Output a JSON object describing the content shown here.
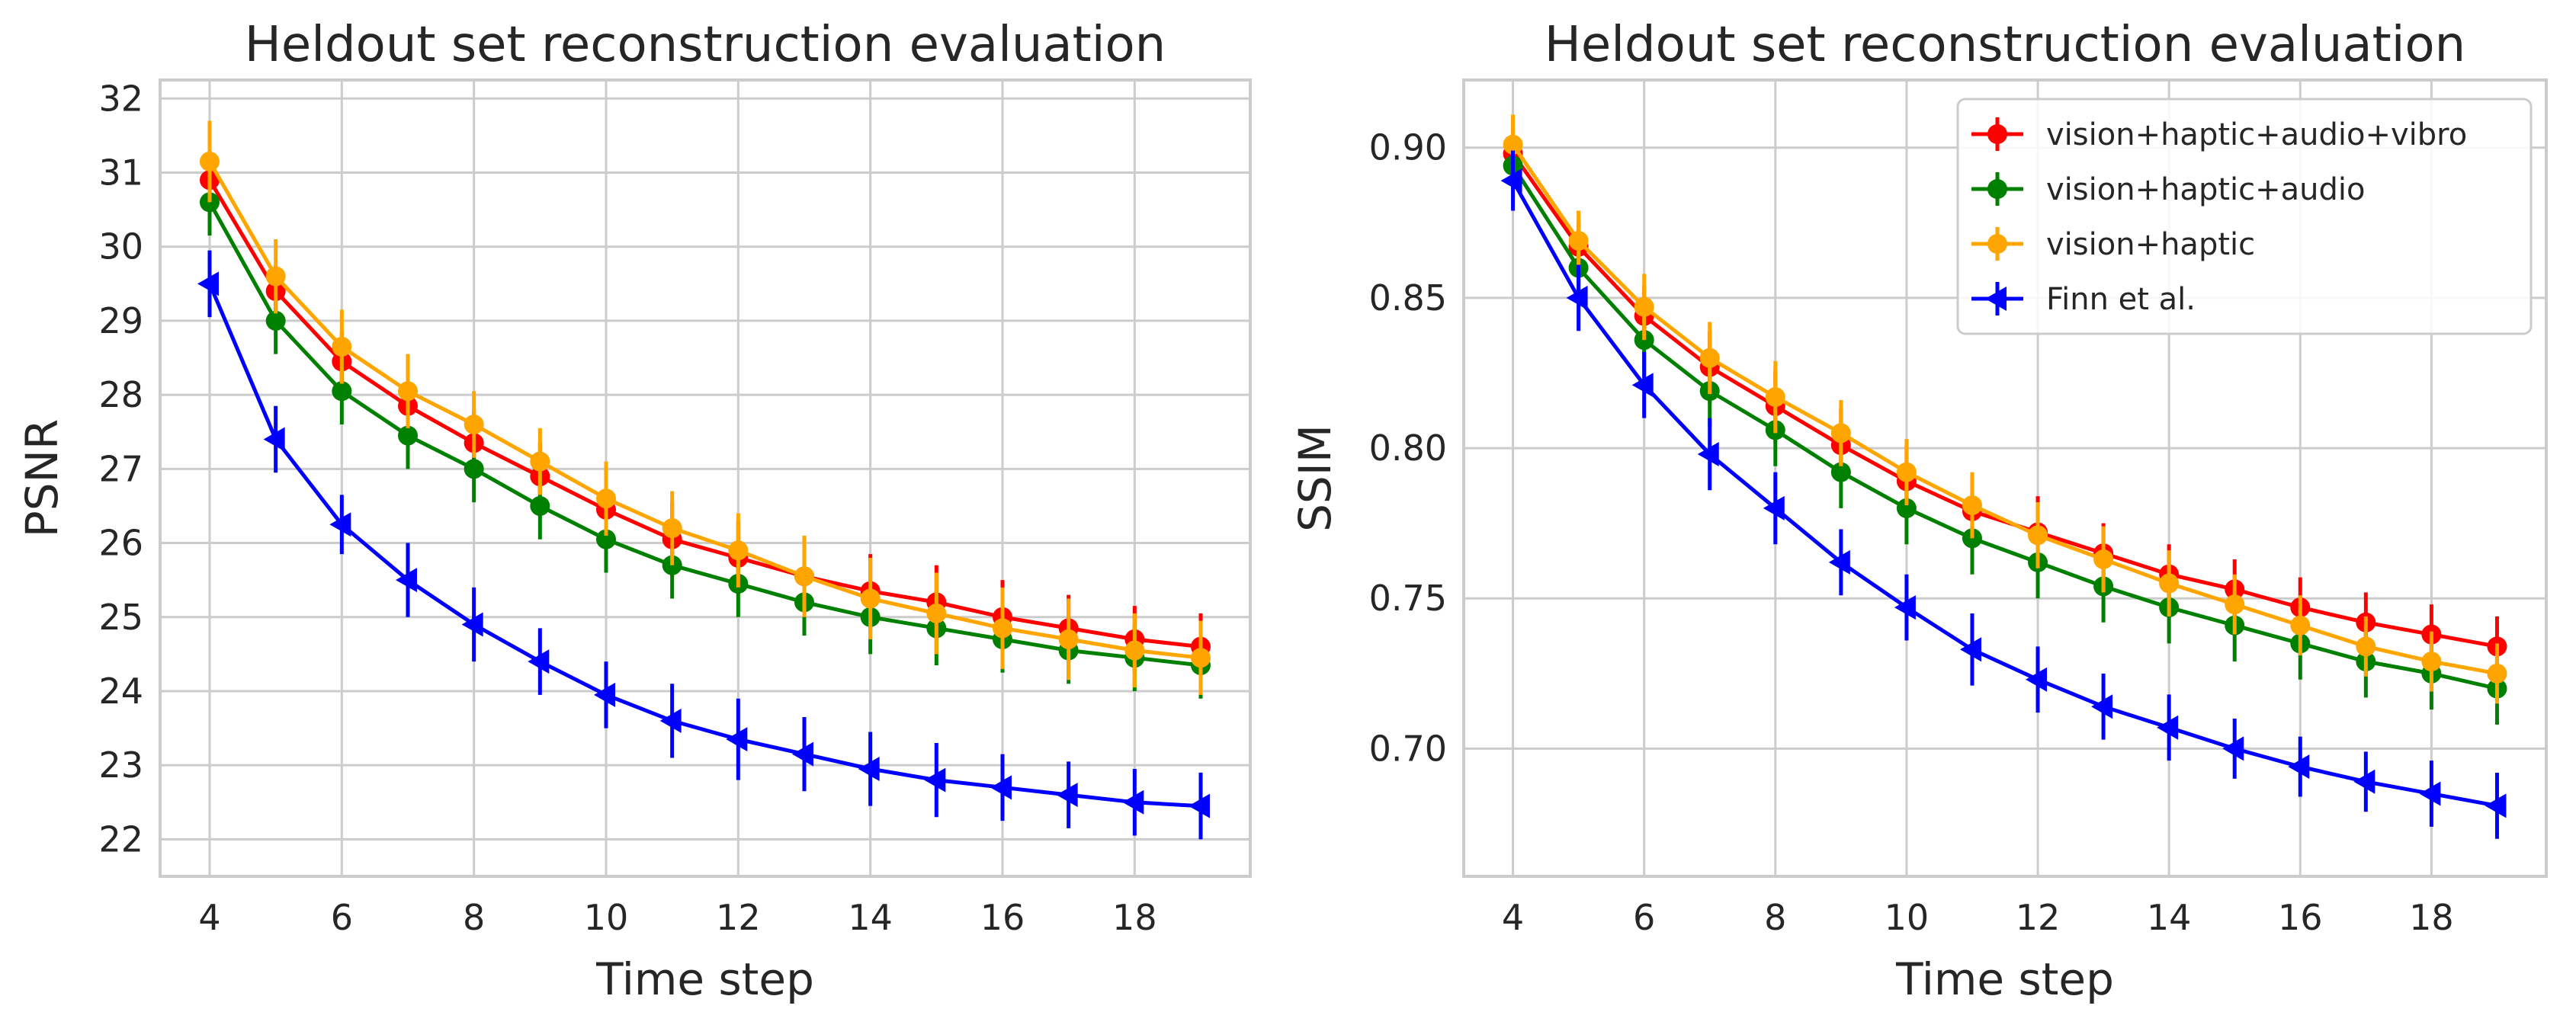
{
  "chart_data": [
    {
      "type": "line",
      "title": "Heldout set reconstruction evaluation",
      "xlabel": "Time step",
      "ylabel": "PSNR",
      "xlim": [
        3.25,
        19.75
      ],
      "ylim": [
        21.5,
        32.25
      ],
      "xticks": [
        4,
        6,
        8,
        10,
        12,
        14,
        16,
        18
      ],
      "yticks": [
        22,
        23,
        24,
        25,
        26,
        27,
        28,
        29,
        30,
        31,
        32
      ],
      "grid": true,
      "legend": null,
      "x": [
        4,
        5,
        6,
        7,
        8,
        9,
        10,
        11,
        12,
        13,
        14,
        15,
        16,
        17,
        18,
        19
      ],
      "series": [
        {
          "label": "vision+haptic+audio+vibro",
          "color": "#ff0000",
          "marker": "circle",
          "values": [
            30.9,
            29.4,
            28.45,
            27.85,
            27.35,
            26.9,
            26.45,
            26.05,
            25.8,
            25.55,
            25.35,
            25.2,
            25.0,
            24.85,
            24.7,
            24.6
          ],
          "err": [
            0.35,
            0.35,
            0.4,
            0.45,
            0.45,
            0.45,
            0.45,
            0.5,
            0.5,
            0.5,
            0.5,
            0.5,
            0.5,
            0.45,
            0.45,
            0.45
          ]
        },
        {
          "label": "vision+haptic+audio",
          "color": "#008000",
          "marker": "circle",
          "values": [
            30.6,
            29.0,
            28.05,
            27.45,
            27.0,
            26.5,
            26.05,
            25.7,
            25.45,
            25.2,
            25.0,
            24.85,
            24.7,
            24.55,
            24.45,
            24.35
          ],
          "err": [
            0.45,
            0.45,
            0.45,
            0.45,
            0.45,
            0.45,
            0.45,
            0.45,
            0.45,
            0.45,
            0.5,
            0.5,
            0.45,
            0.45,
            0.45,
            0.45
          ]
        },
        {
          "label": "vision+haptic",
          "color": "#ffa500",
          "marker": "circle",
          "values": [
            31.15,
            29.6,
            28.65,
            28.05,
            27.6,
            27.1,
            26.6,
            26.2,
            25.9,
            25.55,
            25.25,
            25.05,
            24.85,
            24.7,
            24.55,
            24.45
          ],
          "err": [
            0.55,
            0.5,
            0.5,
            0.5,
            0.45,
            0.45,
            0.5,
            0.5,
            0.5,
            0.55,
            0.55,
            0.55,
            0.55,
            0.55,
            0.5,
            0.5
          ]
        },
        {
          "label": "Finn et al.",
          "color": "#0000ff",
          "marker": "triangle-left",
          "values": [
            29.5,
            27.4,
            26.25,
            25.5,
            24.9,
            24.4,
            23.95,
            23.6,
            23.35,
            23.15,
            22.95,
            22.8,
            22.7,
            22.6,
            22.5,
            22.45
          ],
          "err": [
            0.45,
            0.45,
            0.4,
            0.5,
            0.5,
            0.45,
            0.45,
            0.5,
            0.55,
            0.5,
            0.5,
            0.5,
            0.45,
            0.45,
            0.45,
            0.45
          ]
        }
      ]
    },
    {
      "type": "line",
      "title": "Heldout set reconstruction evaluation",
      "xlabel": "Time step",
      "ylabel": "SSIM",
      "xlim": [
        3.25,
        19.75
      ],
      "ylim": [
        0.6575,
        0.9225
      ],
      "xticks": [
        4,
        6,
        8,
        10,
        12,
        14,
        16,
        18
      ],
      "yticks": [
        0.7,
        0.75,
        0.8,
        0.85,
        0.9
      ],
      "ytick_labels": [
        "0.70",
        "0.75",
        "0.80",
        "0.85",
        "0.90"
      ],
      "grid": true,
      "legend": "top-right",
      "x": [
        4,
        5,
        6,
        7,
        8,
        9,
        10,
        11,
        12,
        13,
        14,
        15,
        16,
        17,
        18,
        19
      ],
      "series": [
        {
          "label": "vision+haptic+audio+vibro",
          "color": "#ff0000",
          "marker": "circle",
          "values": [
            0.898,
            0.867,
            0.844,
            0.827,
            0.814,
            0.801,
            0.789,
            0.779,
            0.772,
            0.765,
            0.758,
            0.753,
            0.747,
            0.742,
            0.738,
            0.734
          ],
          "err": [
            0.008,
            0.008,
            0.01,
            0.012,
            0.012,
            0.012,
            0.012,
            0.012,
            0.012,
            0.01,
            0.01,
            0.01,
            0.01,
            0.01,
            0.01,
            0.01
          ]
        },
        {
          "label": "vision+haptic+audio",
          "color": "#008000",
          "marker": "circle",
          "values": [
            0.894,
            0.86,
            0.836,
            0.819,
            0.806,
            0.792,
            0.78,
            0.77,
            0.762,
            0.754,
            0.747,
            0.741,
            0.735,
            0.729,
            0.725,
            0.72
          ],
          "err": [
            0.008,
            0.01,
            0.012,
            0.012,
            0.012,
            0.012,
            0.012,
            0.012,
            0.012,
            0.012,
            0.012,
            0.012,
            0.012,
            0.012,
            0.012,
            0.012
          ]
        },
        {
          "label": "vision+haptic",
          "color": "#ffa500",
          "marker": "circle",
          "values": [
            0.901,
            0.869,
            0.847,
            0.83,
            0.817,
            0.805,
            0.792,
            0.781,
            0.771,
            0.763,
            0.755,
            0.748,
            0.741,
            0.734,
            0.729,
            0.725
          ],
          "err": [
            0.01,
            0.01,
            0.011,
            0.012,
            0.012,
            0.011,
            0.011,
            0.011,
            0.011,
            0.011,
            0.011,
            0.01,
            0.01,
            0.01,
            0.01,
            0.01
          ]
        },
        {
          "label": "Finn et al.",
          "color": "#0000ff",
          "marker": "triangle-left",
          "values": [
            0.889,
            0.85,
            0.821,
            0.798,
            0.78,
            0.762,
            0.747,
            0.733,
            0.723,
            0.714,
            0.707,
            0.7,
            0.694,
            0.689,
            0.685,
            0.681
          ],
          "err": [
            0.01,
            0.011,
            0.011,
            0.012,
            0.012,
            0.011,
            0.011,
            0.012,
            0.011,
            0.011,
            0.011,
            0.01,
            0.01,
            0.01,
            0.011,
            0.011
          ]
        }
      ]
    }
  ]
}
